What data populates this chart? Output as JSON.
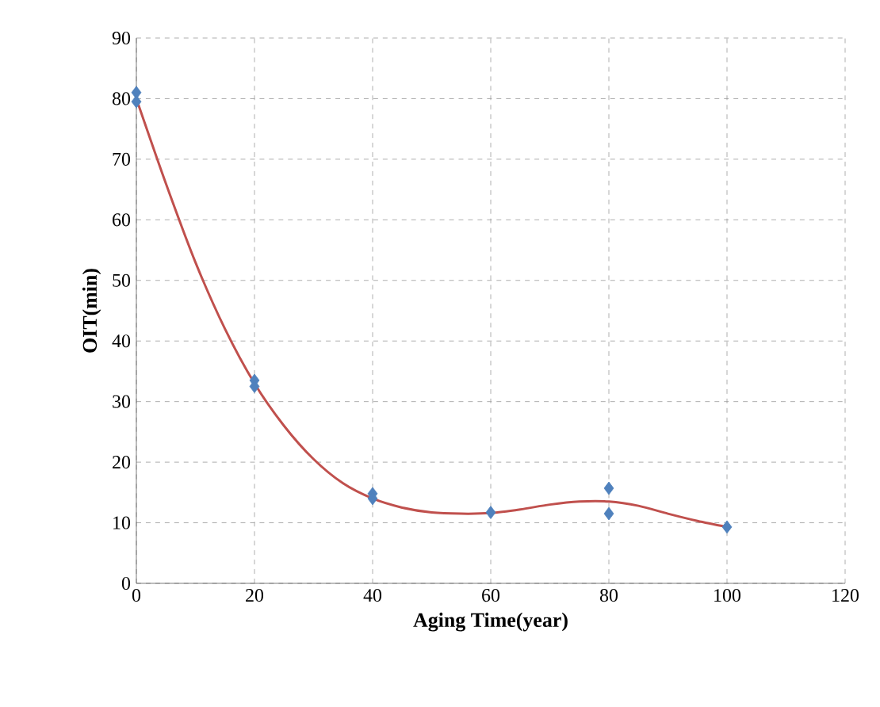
{
  "chart_data": {
    "type": "scatter",
    "xlabel": "Aging Time(year)",
    "ylabel": "OIT(min)",
    "xlim": [
      0,
      120
    ],
    "xticks": [
      0,
      20,
      40,
      60,
      80,
      100,
      120
    ],
    "ylim": [
      0,
      90
    ],
    "yticks": [
      0,
      10,
      20,
      30,
      40,
      50,
      60,
      70,
      80,
      90
    ],
    "grid": true,
    "series": [
      {
        "color": "#4f81bd",
        "marker": "diamond",
        "x": [
          0,
          0,
          20,
          20,
          40,
          40,
          60,
          80,
          80,
          100
        ],
        "values": [
          81,
          79.5,
          33.5,
          32.5,
          14.8,
          14,
          11.7,
          15.7,
          11.5,
          9.3
        ]
      },
      {
        "type": "line",
        "color": "#c0504d",
        "marker": "none",
        "x": [
          0,
          5,
          10,
          15,
          20,
          25,
          30,
          35,
          40,
          45,
          50,
          55,
          60,
          65,
          70,
          75,
          80,
          85,
          90,
          95,
          100
        ],
        "values": [
          80,
          66,
          53,
          42,
          33,
          26,
          20.5,
          16.5,
          14,
          12.5,
          11.7,
          11.5,
          11.6,
          12.2,
          13,
          13.5,
          13.5,
          12.8,
          11.5,
          10.3,
          9.3
        ]
      }
    ]
  }
}
